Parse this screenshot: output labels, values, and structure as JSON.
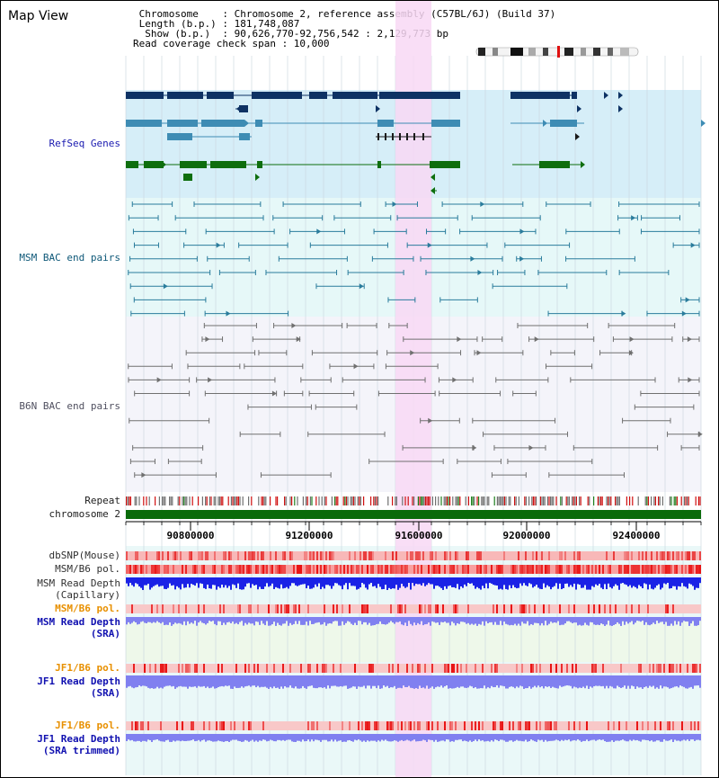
{
  "view_title": "Map View",
  "header": {
    "lines": [
      " Chromosome    : Chromosome 2, reference assembly (C57BL/6J) (Build 37)",
      " Length (b.p.) : 181,748,087",
      "  Show (b.p.)  : 90,626,770-92,756,542 : 2,129,773 bp",
      "Read coverage check span : 10,000"
    ]
  },
  "tracks": {
    "refseq": "RefSeq Genes",
    "msm_bac": "MSM BAC end pairs",
    "b6n_bac": "B6N BAC end pairs",
    "repeat": "Repeat",
    "chromosome": "chromosome 2",
    "dbsnp": "dbSNP(Mouse)",
    "msm_b6_pol": "MSM/B6 pol.",
    "msm_depth_cap_1": "MSM Read Depth",
    "msm_depth_cap_2": "(Capillary)",
    "msm_b6_pol_sra": "MSM/B6 pol.",
    "msm_depth_sra_1": "MSM Read Depth",
    "msm_depth_sra_2": "(SRA)",
    "jf1_b6_pol": "JF1/B6 pol.",
    "jf1_depth_sra_1": "JF1 Read Depth",
    "jf1_depth_sra_2": "(SRA)",
    "jf1_b6_pol_trim": "JF1/B6 pol.",
    "jf1_depth_trim_1": "JF1 Read Depth",
    "jf1_depth_trim_2": "(SRA trimmed)"
  },
  "axis": {
    "ticks": [
      "90800000",
      "91200000",
      "91600000",
      "92000000",
      "92400000"
    ]
  },
  "colors": {
    "refseq_bg": "#d6eef8",
    "gene_navy": "#0e3264",
    "gene_teal": "#3e8cb4",
    "gene_green": "#0e6e0e",
    "msm_line": "#2a7c9c",
    "b6n_line": "#707070",
    "highlight": "#f8d8f4",
    "depth_blue": "#1a22e6",
    "depth_light": "#8080f0",
    "label_orange": "#e89000",
    "label_blue": "#1010b0"
  }
}
